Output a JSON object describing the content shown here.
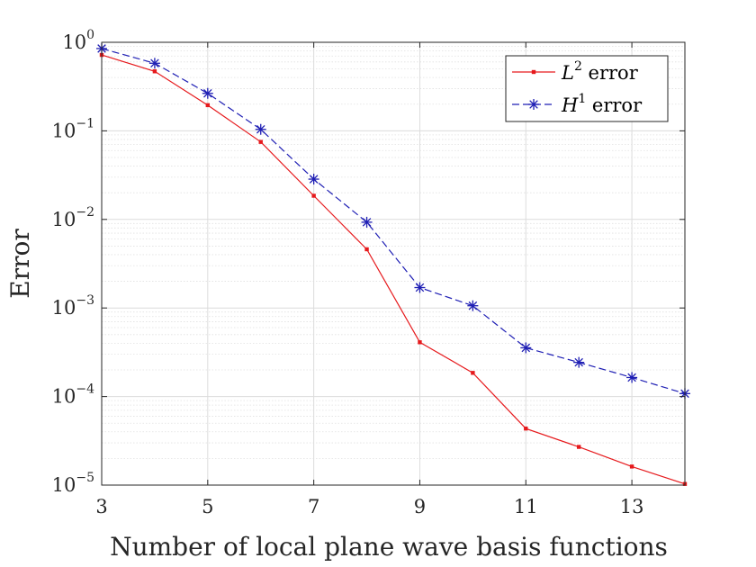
{
  "chart_data": {
    "type": "line",
    "xlabel": "Number of local plane wave basis functions",
    "ylabel": "Error",
    "xlim": [
      3,
      14
    ],
    "ylim": [
      1e-05,
      1
    ],
    "yscale": "log",
    "grid": true,
    "legend_position": "top-right",
    "x_ticks": [
      3,
      5,
      7,
      9,
      11,
      13
    ],
    "x_tick_labels": [
      "3",
      "5",
      "7",
      "9",
      "11",
      "13"
    ],
    "y_ticks": [
      1,
      0.1,
      0.01,
      0.001,
      0.0001,
      1e-05
    ],
    "y_tick_labels": [
      {
        "base": "10",
        "exp": "0"
      },
      {
        "base": "10",
        "exp": "−1"
      },
      {
        "base": "10",
        "exp": "−2"
      },
      {
        "base": "10",
        "exp": "−3"
      },
      {
        "base": "10",
        "exp": "−4"
      },
      {
        "base": "10",
        "exp": "−5"
      }
    ],
    "x": [
      3,
      4,
      5,
      6,
      7,
      8,
      9,
      10,
      11,
      12,
      13,
      14
    ],
    "series": [
      {
        "name": "L2 error",
        "legend_symbol": "L",
        "legend_exp": "2",
        "legend_suffix": " error",
        "color": "#e6191c",
        "style": "solid",
        "marker": "square",
        "values": [
          0.72,
          0.47,
          0.195,
          0.075,
          0.0185,
          0.0046,
          0.00041,
          0.000185,
          4.35e-05,
          2.7e-05,
          1.62e-05,
          1.03e-05
        ]
      },
      {
        "name": "H1 error",
        "legend_symbol": "H",
        "legend_exp": "1",
        "legend_suffix": " error",
        "color": "#1f1fb4",
        "style": "dashed",
        "marker": "asterisk",
        "values": [
          0.85,
          0.58,
          0.265,
          0.104,
          0.0285,
          0.0093,
          0.0017,
          0.00106,
          0.000355,
          0.000243,
          0.000164,
          0.000108
        ]
      }
    ]
  }
}
